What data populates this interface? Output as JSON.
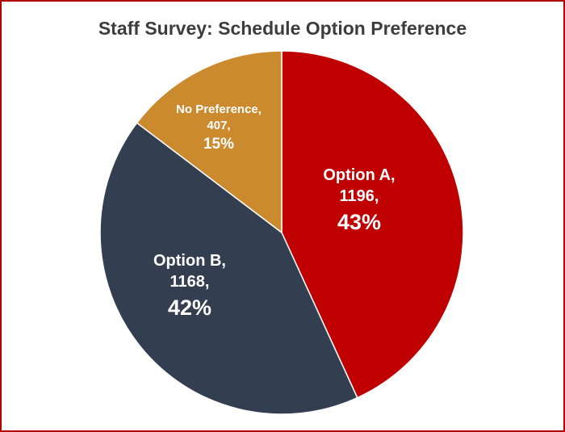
{
  "chart_data": {
    "type": "pie",
    "title": "Staff Survey: Schedule Option Preference",
    "slices": [
      {
        "name": "Option A",
        "count_label": "1196,",
        "pct_label": "43%",
        "value": 1196,
        "percent": 43,
        "color": "#c00000"
      },
      {
        "name": "Option B",
        "count_label": "1168,",
        "pct_label": "42%",
        "value": 1168,
        "percent": 42,
        "color": "#333f50"
      },
      {
        "name": "No Preference",
        "count_label": "407,",
        "pct_label": "15%",
        "value": 407,
        "percent": 15,
        "color": "#cc8a2e"
      }
    ],
    "slice_name_labels": [
      "Option A,",
      "Option B,",
      "No Preference,"
    ],
    "legend": "none"
  }
}
